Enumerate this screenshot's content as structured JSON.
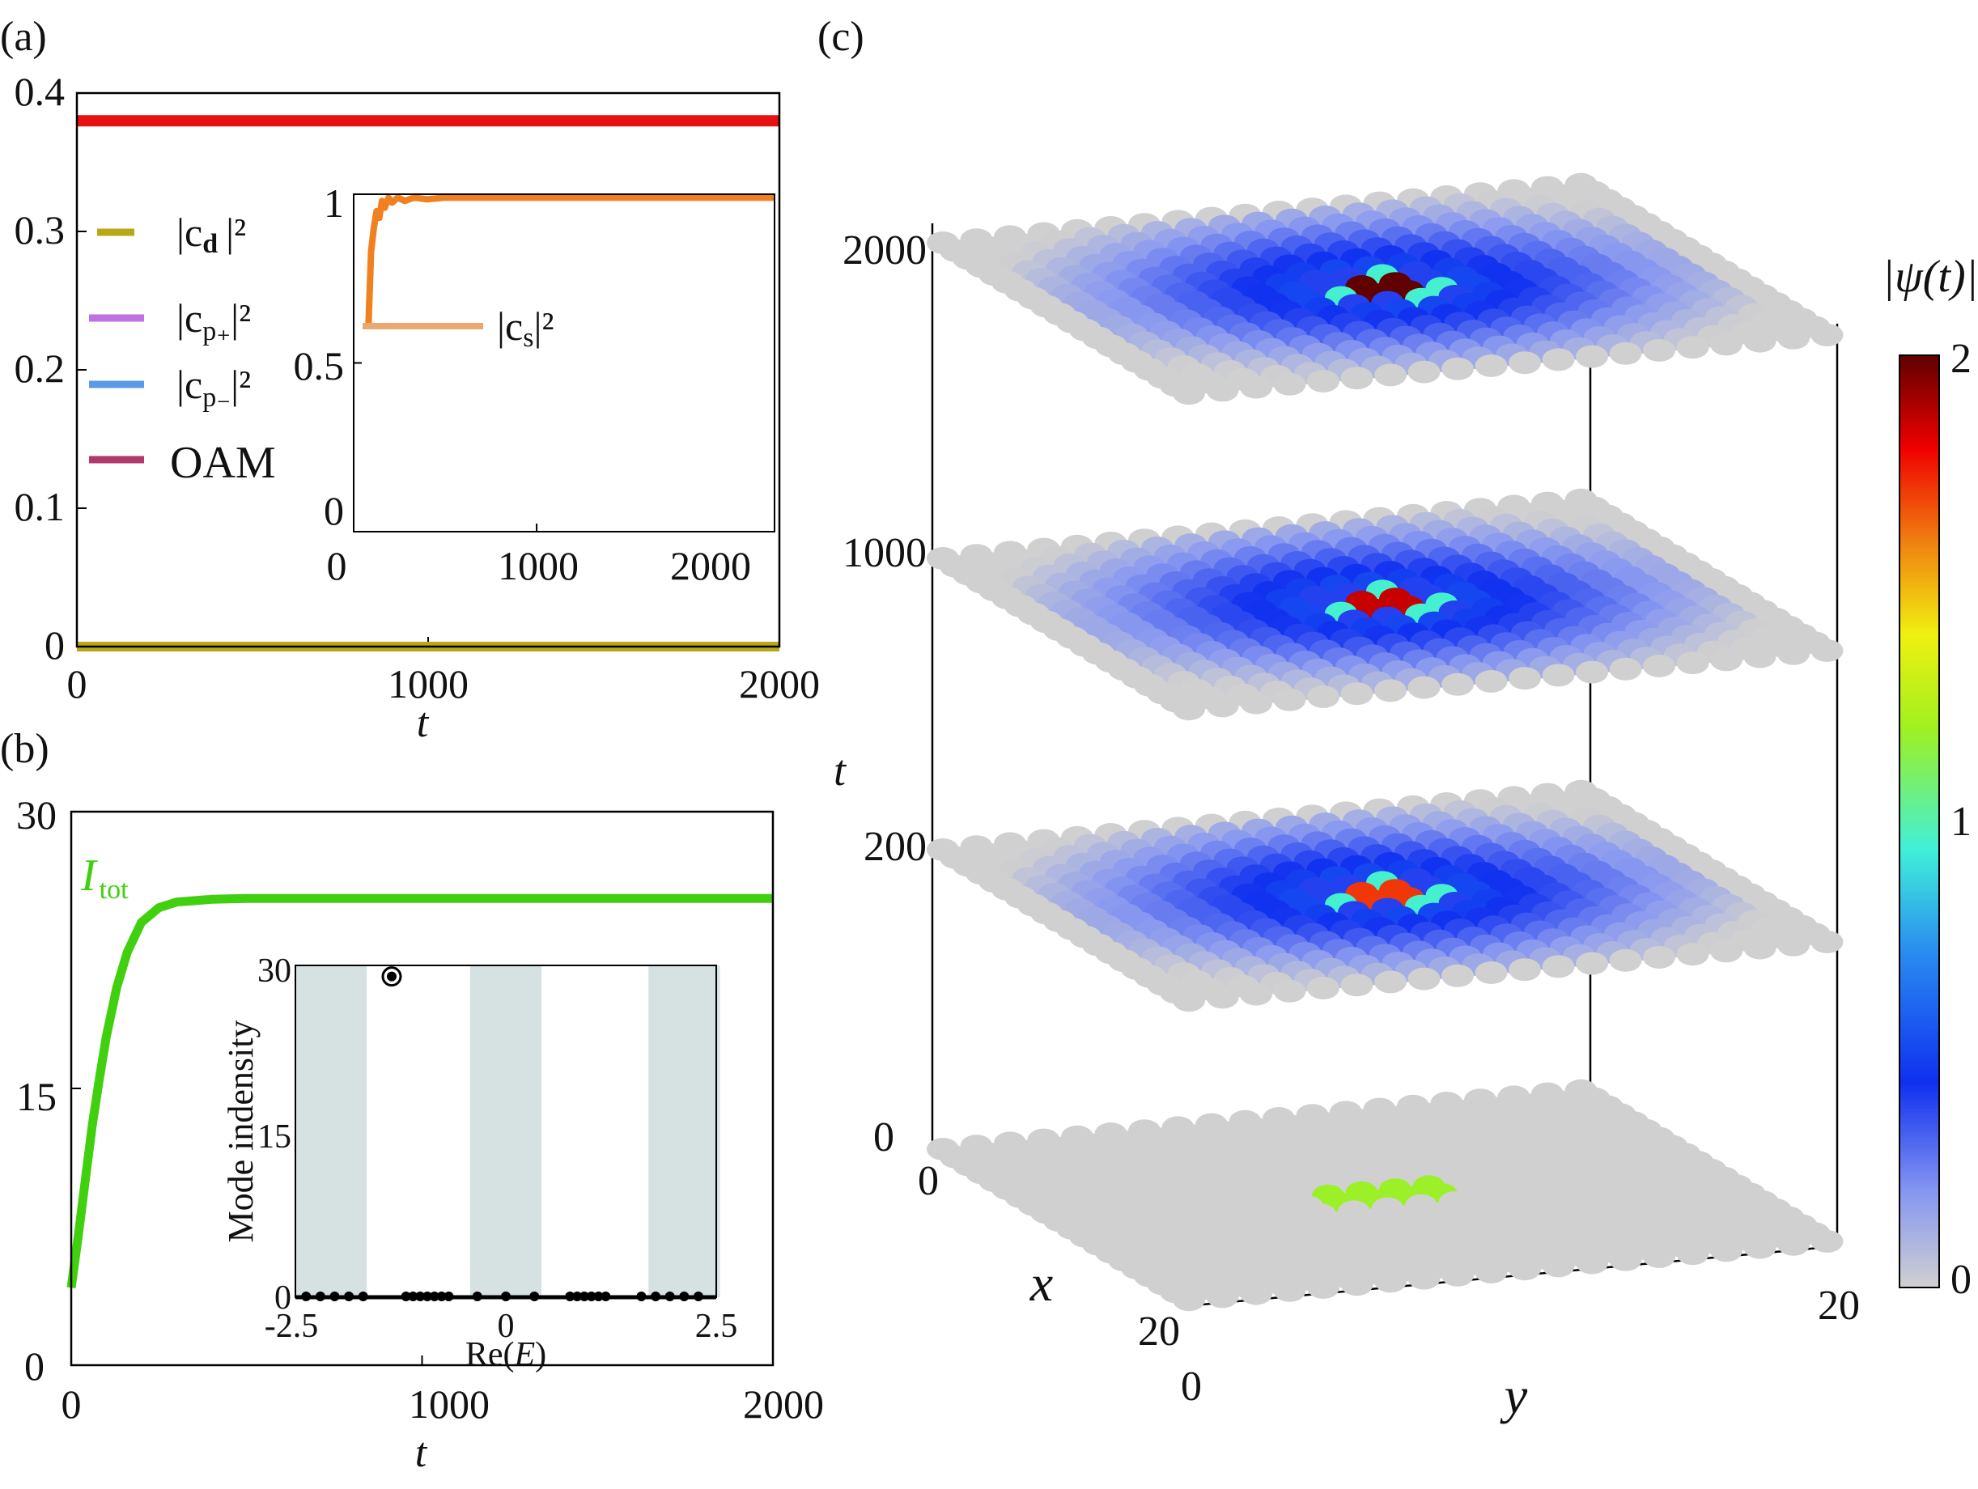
{
  "chart_data": [
    {
      "panel": "(a)",
      "type": "line",
      "xlabel": "t",
      "ylabel": "",
      "xlim": [
        0,
        2000
      ],
      "ylim": [
        0,
        0.4
      ],
      "xticks": [
        "0",
        "1000",
        "2000"
      ],
      "yticks": [
        "0",
        "0.1",
        "0.2",
        "0.3",
        "0.4"
      ],
      "series": [
        {
          "name": "|c_d|^2",
          "legend": {
            "main": "|c",
            "sub": "d",
            "tail": "|²"
          },
          "color": "#b8a818",
          "x": [
            0,
            2000
          ],
          "values": [
            0,
            0
          ]
        },
        {
          "name": "|c_p+|^2",
          "legend": {
            "main": "|c",
            "sub": "p₊",
            "tail": "|²"
          },
          "color": "#c070e0",
          "x": [
            0,
            2000
          ],
          "values": [
            0,
            0
          ]
        },
        {
          "name": "|c_p-|^2",
          "legend": {
            "main": "|c",
            "sub": "p₋",
            "tail": "|²"
          },
          "color": "#5a9ae8",
          "x": [
            0,
            2000
          ],
          "values": [
            0,
            0
          ]
        },
        {
          "name": "OAM",
          "legend": {
            "main": "OAM",
            "sub": "",
            "tail": ""
          },
          "color": "#b23a6a",
          "x": [
            0,
            2000
          ],
          "values": [
            0.38,
            0.38
          ]
        }
      ],
      "red_line": {
        "color": "#e81010",
        "value": 0.38
      },
      "inset": {
        "type": "line",
        "xlim": [
          0,
          2300
        ],
        "ylim": [
          0,
          1
        ],
        "xticks": [
          "0",
          "1000",
          "2000"
        ],
        "yticks": [
          "0",
          "0.5",
          "1"
        ],
        "series": [
          {
            "name": "|c_s|^2",
            "legend": {
              "main": "|c",
              "sub": "s",
              "tail": "|²"
            },
            "legend_color": "#e8a870",
            "color": "#f08020",
            "x": [
              80,
              95,
              110,
              125,
              140,
              155,
              170,
              190,
              210,
              240,
              280,
              330,
              400,
              500,
              700,
              1000,
              1500,
              2300
            ],
            "values": [
              0.6,
              0.83,
              0.9,
              0.95,
              0.93,
              0.98,
              0.96,
              0.99,
              0.975,
              0.99,
              0.98,
              0.99,
              0.985,
              0.99,
              0.99,
              0.99,
              0.99,
              0.99
            ]
          }
        ]
      }
    },
    {
      "panel": "(b)",
      "type": "line",
      "xlabel": "t",
      "xlim": [
        0,
        2000
      ],
      "ylim": [
        0,
        30
      ],
      "xticks": [
        "0",
        "1000",
        "2000"
      ],
      "yticks": [
        "0",
        "15",
        "30"
      ],
      "series": [
        {
          "name": "I_tot",
          "label_main": "I",
          "label_sub": "tot",
          "color": "#40d010",
          "x": [
            0,
            20,
            40,
            60,
            80,
            100,
            130,
            160,
            200,
            250,
            300,
            400,
            500,
            700,
            1000,
            1500,
            2000
          ],
          "values": [
            4.2,
            7.0,
            10.0,
            13.0,
            15.5,
            17.8,
            20.5,
            22.4,
            24.0,
            24.8,
            25.1,
            25.25,
            25.3,
            25.3,
            25.3,
            25.3,
            25.3
          ]
        }
      ],
      "inset": {
        "type": "scatter",
        "xlabel": "Re(E)",
        "ylabel": "Mode indensity",
        "xlim": [
          -2.95,
          2.95
        ],
        "ylim": [
          0,
          30
        ],
        "xticks": [
          "-2.5",
          "0",
          "2.5"
        ],
        "yticks": [
          "0",
          "15",
          "30"
        ],
        "bands": [
          [
            -2.95,
            -1.95
          ],
          [
            -0.5,
            0.5
          ],
          [
            2.0,
            3.0
          ]
        ],
        "points": [
          {
            "x": -1.6,
            "y": 29,
            "highlight": true
          },
          {
            "x": -2.8,
            "y": 0
          },
          {
            "x": -2.6,
            "y": 0
          },
          {
            "x": -2.4,
            "y": 0
          },
          {
            "x": -2.2,
            "y": 0
          },
          {
            "x": -2.0,
            "y": 0
          },
          {
            "x": -1.4,
            "y": 0
          },
          {
            "x": -1.3,
            "y": 0
          },
          {
            "x": -1.2,
            "y": 0
          },
          {
            "x": -1.1,
            "y": 0
          },
          {
            "x": -1.0,
            "y": 0
          },
          {
            "x": -0.9,
            "y": 0
          },
          {
            "x": -0.8,
            "y": 0
          },
          {
            "x": -0.4,
            "y": 0
          },
          {
            "x": 0.0,
            "y": 0
          },
          {
            "x": 0.4,
            "y": 0
          },
          {
            "x": 0.9,
            "y": 0
          },
          {
            "x": 1.0,
            "y": 0
          },
          {
            "x": 1.1,
            "y": 0
          },
          {
            "x": 1.2,
            "y": 0
          },
          {
            "x": 1.3,
            "y": 0
          },
          {
            "x": 1.4,
            "y": 0
          },
          {
            "x": 1.9,
            "y": 0
          },
          {
            "x": 2.1,
            "y": 0
          },
          {
            "x": 2.3,
            "y": 0
          },
          {
            "x": 2.5,
            "y": 0
          },
          {
            "x": 2.7,
            "y": 0
          }
        ]
      }
    },
    {
      "panel": "(c)",
      "type": "heatmap",
      "xlabel": "x",
      "ylabel": "y",
      "zlabel": "t",
      "grid_size": 20,
      "t_ticks": [
        "0",
        "200",
        "1000",
        "2000"
      ],
      "x_ticks": [
        "0",
        "20"
      ],
      "y_ticks": [
        "0",
        "20"
      ],
      "colorbar_label": "|ψ(t)|",
      "colorbar_ticks": [
        "0",
        "1",
        "2"
      ],
      "colorbar_range": [
        0,
        2.1
      ],
      "layers": [
        {
          "t": "0",
          "centre": 0.0,
          "peak": 1.25,
          "ring": 0.0
        },
        {
          "t": "200",
          "centre": 1.8,
          "peak": 1.0,
          "ring": 0.55
        },
        {
          "t": "1000",
          "centre": 1.95,
          "peak": 1.0,
          "ring": 0.55
        },
        {
          "t": "2000",
          "centre": 2.1,
          "peak": 1.0,
          "ring": 0.55
        }
      ]
    }
  ]
}
